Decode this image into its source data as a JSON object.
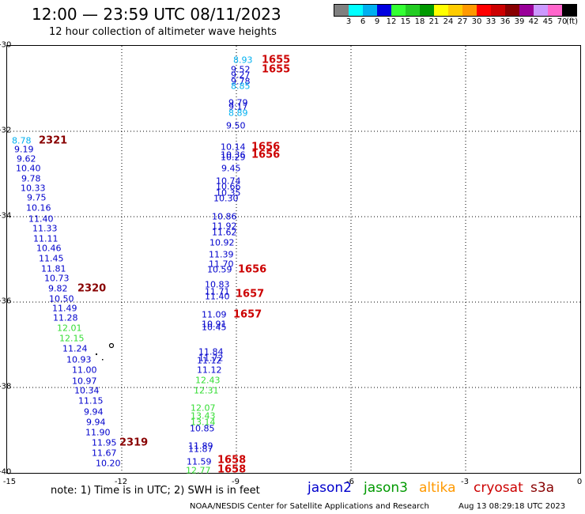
{
  "title": "12:00 — 23:59 UTC 08/11/2023",
  "subtitle": "12 hour collection of altimeter wave heights",
  "legend": {
    "colors": [
      "#808080",
      "#00ffff",
      "#00b0f0",
      "#0000e0",
      "#33ff33",
      "#22cc22",
      "#009900",
      "#ffff00",
      "#ffcc00",
      "#ff9900",
      "#ff0000",
      "#cc0000",
      "#880000",
      "#990099",
      "#cc99ff",
      "#ff66cc",
      "#000000"
    ],
    "labels": [
      "3",
      "6",
      "9",
      "12",
      "15",
      "18",
      "21",
      "24",
      "27",
      "30",
      "33",
      "36",
      "39",
      "42",
      "45",
      "70"
    ],
    "unit": "(ft)"
  },
  "axes": {
    "lat_ticks": [
      "-30",
      "-32",
      "-34",
      "-36",
      "-38",
      "-40"
    ],
    "lon_ticks": [
      "-15",
      "-12",
      "-9",
      "-6",
      "-3",
      "0"
    ]
  },
  "note": "note:  1) Time is in UTC;  2) SWH is in feet",
  "satellites": [
    {
      "name": "jason2",
      "color": "#0000cc"
    },
    {
      "name": "jason3",
      "color": "#009900"
    },
    {
      "name": "altika",
      "color": "#ff9900"
    },
    {
      "name": "cryosat",
      "color": "#cc0000"
    },
    {
      "name": "s3a",
      "color": "#880000"
    }
  ],
  "credit": "NOAA/NESDIS Center for Satellite Applications and Research",
  "timestamp": "Aug 13 08:29:18 UTC 2023",
  "track_west": [
    {
      "v": "8.78",
      "c": "#00b0f0"
    },
    {
      "v": "9.19",
      "c": "#0000cc"
    },
    {
      "v": "9.62",
      "c": "#0000cc"
    },
    {
      "v": "10.40",
      "c": "#0000cc"
    },
    {
      "v": "9.78",
      "c": "#0000cc"
    },
    {
      "v": "10.33",
      "c": "#0000cc"
    },
    {
      "v": "9.75",
      "c": "#0000cc"
    },
    {
      "v": "10.16",
      "c": "#0000cc"
    },
    {
      "v": "11.40",
      "c": "#0000cc"
    },
    {
      "v": "11.33",
      "c": "#0000cc"
    },
    {
      "v": "11.11",
      "c": "#0000cc"
    },
    {
      "v": "10.46",
      "c": "#0000cc"
    },
    {
      "v": "11.45",
      "c": "#0000cc"
    },
    {
      "v": "11.81",
      "c": "#0000cc"
    },
    {
      "v": "10.73",
      "c": "#0000cc"
    },
    {
      "v": "9.82",
      "c": "#0000cc"
    },
    {
      "v": "10.50",
      "c": "#0000cc"
    },
    {
      "v": "11.49",
      "c": "#0000cc"
    },
    {
      "v": "11.28",
      "c": "#0000cc"
    },
    {
      "v": "12.01",
      "c": "#33dd33"
    },
    {
      "v": "12.15",
      "c": "#33dd33"
    },
    {
      "v": "11.24",
      "c": "#0000cc"
    },
    {
      "v": "10.93",
      "c": "#0000cc"
    },
    {
      "v": "11.00",
      "c": "#0000cc"
    },
    {
      "v": "10.97",
      "c": "#0000cc"
    },
    {
      "v": "10.34",
      "c": "#0000cc"
    },
    {
      "v": "11.15",
      "c": "#0000cc"
    },
    {
      "v": "9.94",
      "c": "#0000cc"
    },
    {
      "v": "9.94",
      "c": "#0000cc"
    },
    {
      "v": "11.90",
      "c": "#0000cc"
    },
    {
      "v": "11.95",
      "c": "#0000cc"
    },
    {
      "v": "11.67",
      "c": "#0000cc"
    },
    {
      "v": "10.20",
      "c": "#0000cc"
    }
  ],
  "track_east": [
    {
      "v": "8.93",
      "c": "#00b0f0"
    },
    {
      "v": "9.52",
      "c": "#0000cc"
    },
    {
      "v": "9.27",
      "c": "#0000cc"
    },
    {
      "v": "9.78",
      "c": "#0000cc"
    },
    {
      "v": "8.85",
      "c": "#00b0f0"
    },
    {
      "v": "9.79",
      "c": "#0000cc"
    },
    {
      "v": "9.17",
      "c": "#0000cc"
    },
    {
      "v": "8.89",
      "c": "#00b0f0"
    },
    {
      "v": "9.50",
      "c": "#0000cc"
    },
    {
      "v": "10.14",
      "c": "#0000cc"
    },
    {
      "v": "10.36",
      "c": "#0000cc"
    },
    {
      "v": "10.29",
      "c": "#0000cc"
    },
    {
      "v": "9.45",
      "c": "#0000cc"
    },
    {
      "v": "10.74",
      "c": "#0000cc"
    },
    {
      "v": "10.66",
      "c": "#0000cc"
    },
    {
      "v": "10.35",
      "c": "#0000cc"
    },
    {
      "v": "10.30",
      "c": "#0000cc"
    },
    {
      "v": "10.86",
      "c": "#0000cc"
    },
    {
      "v": "11.92",
      "c": "#0000cc"
    },
    {
      "v": "11.62",
      "c": "#0000cc"
    },
    {
      "v": "10.92",
      "c": "#0000cc"
    },
    {
      "v": "11.39",
      "c": "#0000cc"
    },
    {
      "v": "11.70",
      "c": "#0000cc"
    },
    {
      "v": "10.59",
      "c": "#0000cc"
    },
    {
      "v": "10.83",
      "c": "#0000cc"
    },
    {
      "v": "11.71",
      "c": "#0000cc"
    },
    {
      "v": "11.40",
      "c": "#0000cc"
    },
    {
      "v": "11.09",
      "c": "#0000cc"
    },
    {
      "v": "10.91",
      "c": "#0000cc"
    },
    {
      "v": "10.45",
      "c": "#0000cc"
    },
    {
      "v": "11.84",
      "c": "#0000cc"
    },
    {
      "v": "11.72",
      "c": "#0000cc"
    },
    {
      "v": "11.12",
      "c": "#0000cc"
    },
    {
      "v": "11.12",
      "c": "#0000cc"
    },
    {
      "v": "12.43",
      "c": "#33dd33"
    },
    {
      "v": "12.31",
      "c": "#33dd33"
    },
    {
      "v": "12.07",
      "c": "#33dd33"
    },
    {
      "v": "13.43",
      "c": "#33dd33"
    },
    {
      "v": "13.14",
      "c": "#33dd33"
    },
    {
      "v": "10.85",
      "c": "#0000cc"
    },
    {
      "v": "11.89",
      "c": "#0000cc"
    },
    {
      "v": "11.87",
      "c": "#0000cc"
    },
    {
      "v": "11.59",
      "c": "#0000cc"
    },
    {
      "v": "12.77",
      "c": "#33dd33"
    }
  ],
  "time_labels": [
    {
      "v": "1655",
      "c": "#cc0000"
    },
    {
      "v": "1655",
      "c": "#cc0000"
    },
    {
      "v": "1656",
      "c": "#cc0000"
    },
    {
      "v": "1656",
      "c": "#cc0000"
    },
    {
      "v": "1656",
      "c": "#cc0000"
    },
    {
      "v": "1657",
      "c": "#cc0000"
    },
    {
      "v": "1657",
      "c": "#cc0000"
    },
    {
      "v": "1658",
      "c": "#cc0000"
    },
    {
      "v": "1658",
      "c": "#cc0000"
    },
    {
      "v": "2321",
      "c": "#880000"
    },
    {
      "v": "2320",
      "c": "#880000"
    },
    {
      "v": "2319",
      "c": "#880000"
    }
  ]
}
